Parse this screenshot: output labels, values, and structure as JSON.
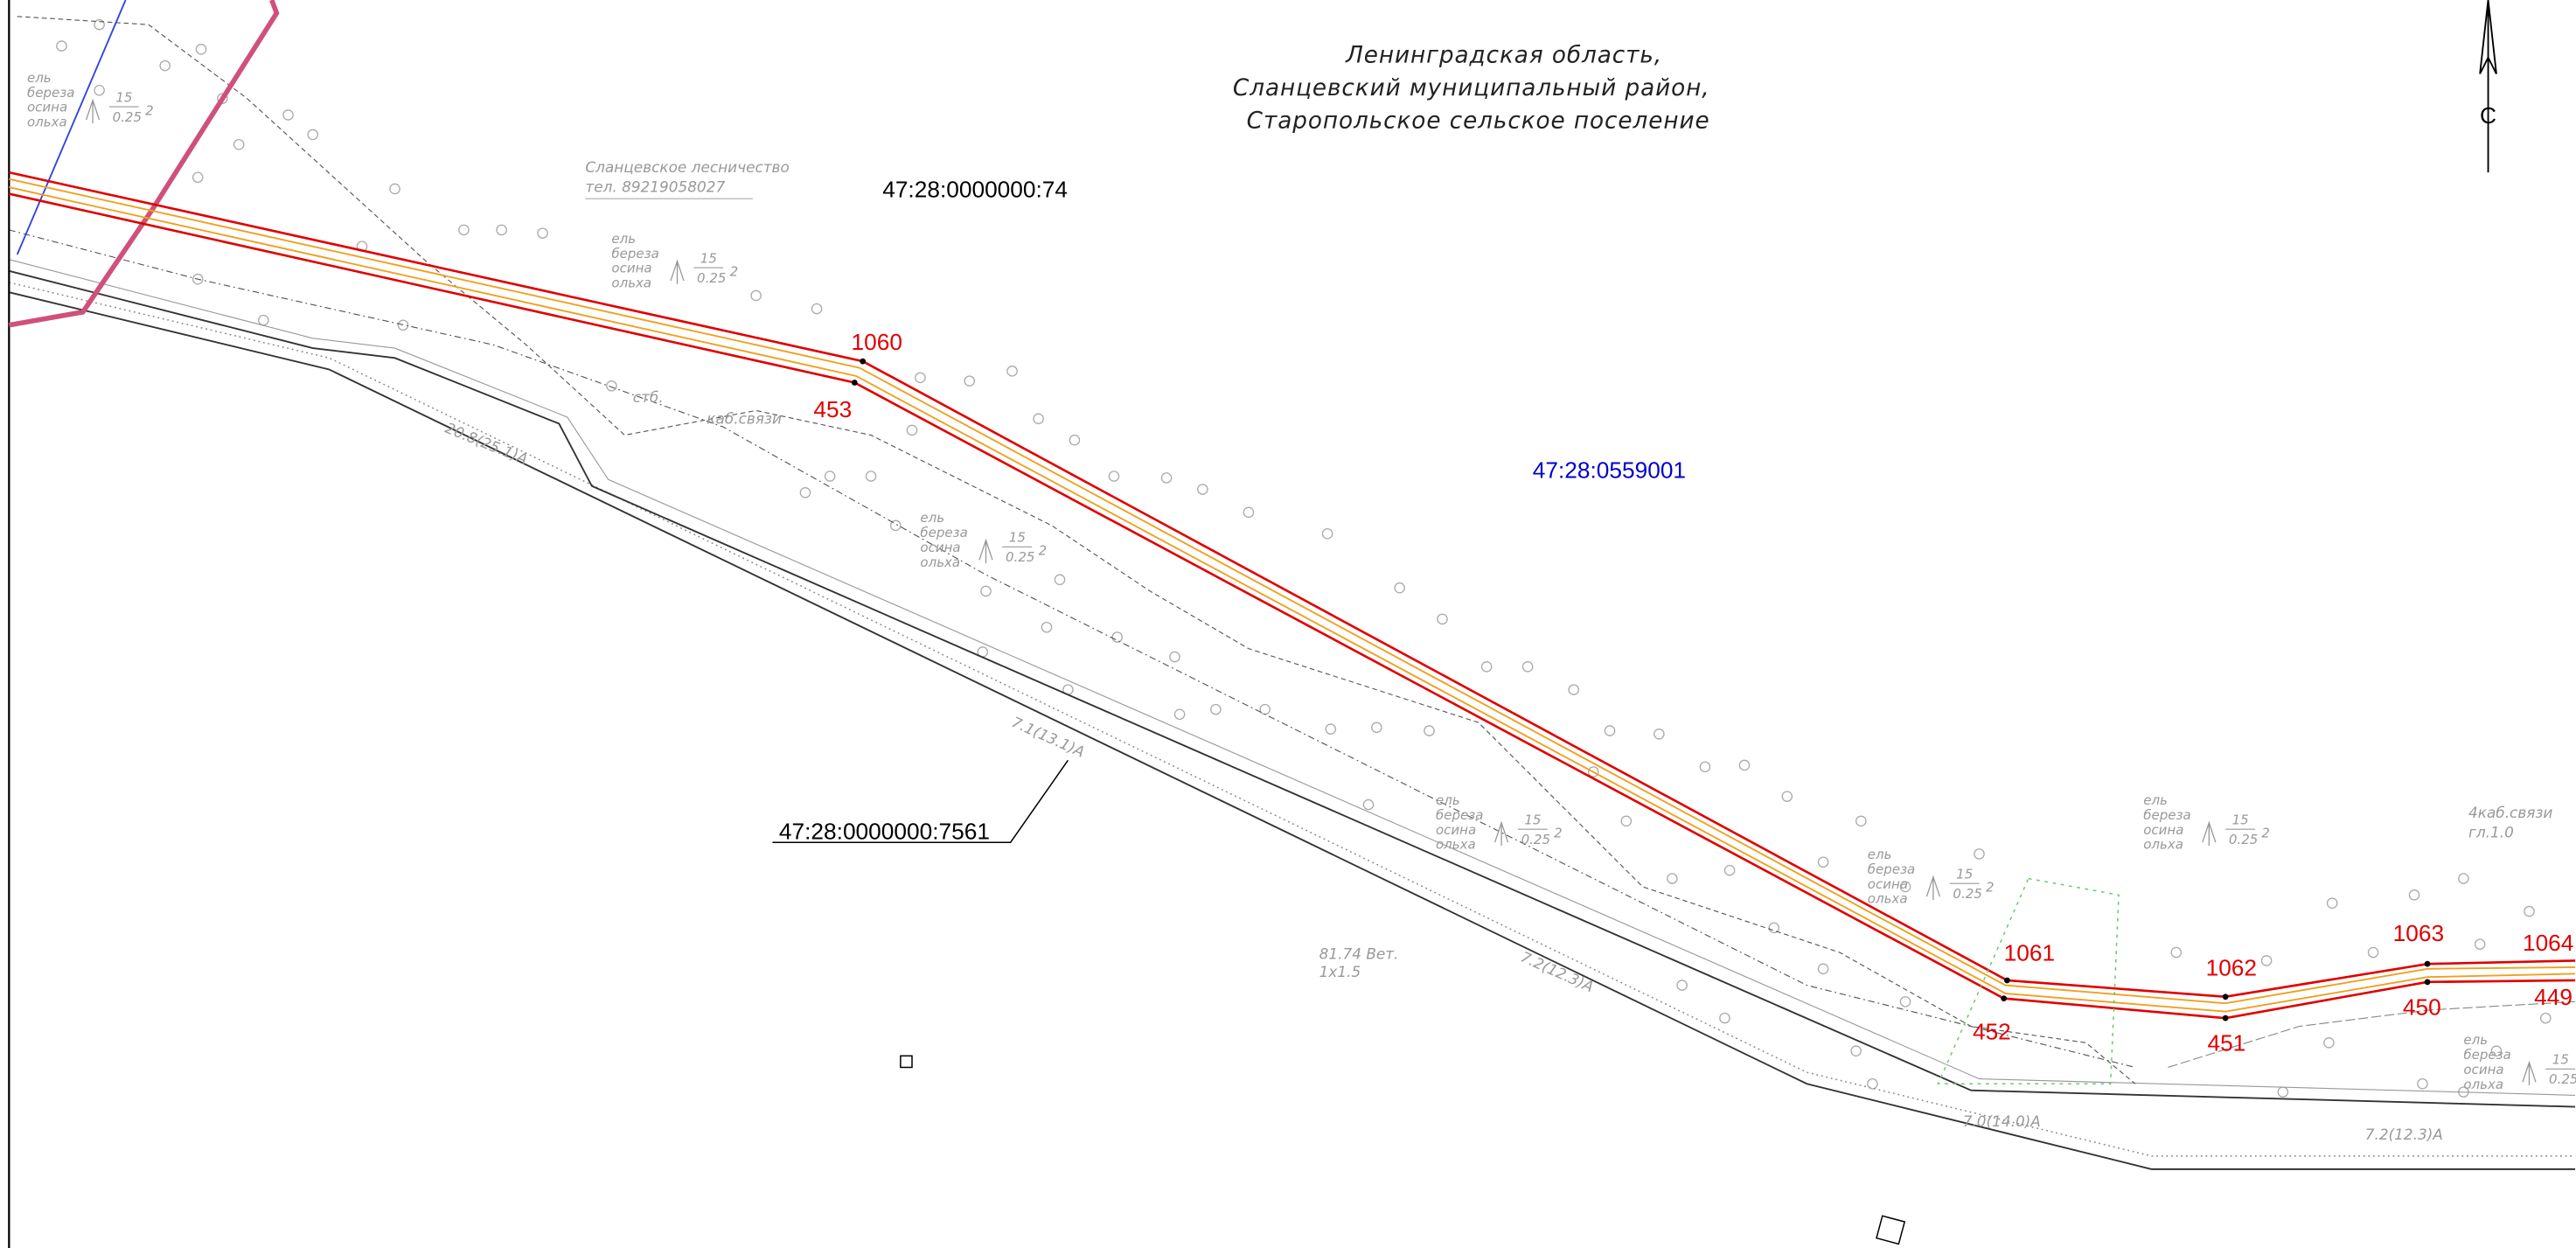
{
  "header": {
    "lines": [
      "Ленинградская область,",
      "Сланцевский муниципальный район,",
      "Старопольское сельское поселение"
    ]
  },
  "north": "С",
  "parcels": [
    "47:28:0000000:74",
    "47:28:0000000:7561"
  ],
  "quarter": "47:28:0559001",
  "points": [
    "1060",
    "453",
    "1061",
    "452",
    "1062",
    "451",
    "1063",
    "450",
    "1064",
    "449"
  ],
  "annotations": {
    "forestry": "Сланцевское лесничество",
    "phone": "тел. 89219058027",
    "post": "стб.",
    "cable": "каб.связи",
    "road1": "20.8(25.1)А",
    "road2": "7.1(13.1)А",
    "road3": "7.2(12.3)А",
    "road4": "7.0(14.0)А",
    "pipe": "81.74 Вет.",
    "pipe_size": "1х1.5",
    "cable4": "4каб.связи",
    "depth": "гл.1.0",
    "species": [
      "ель",
      "береза",
      "осина",
      "ольха"
    ],
    "height": "15",
    "diameter": "0.25",
    "spacing": "2"
  }
}
